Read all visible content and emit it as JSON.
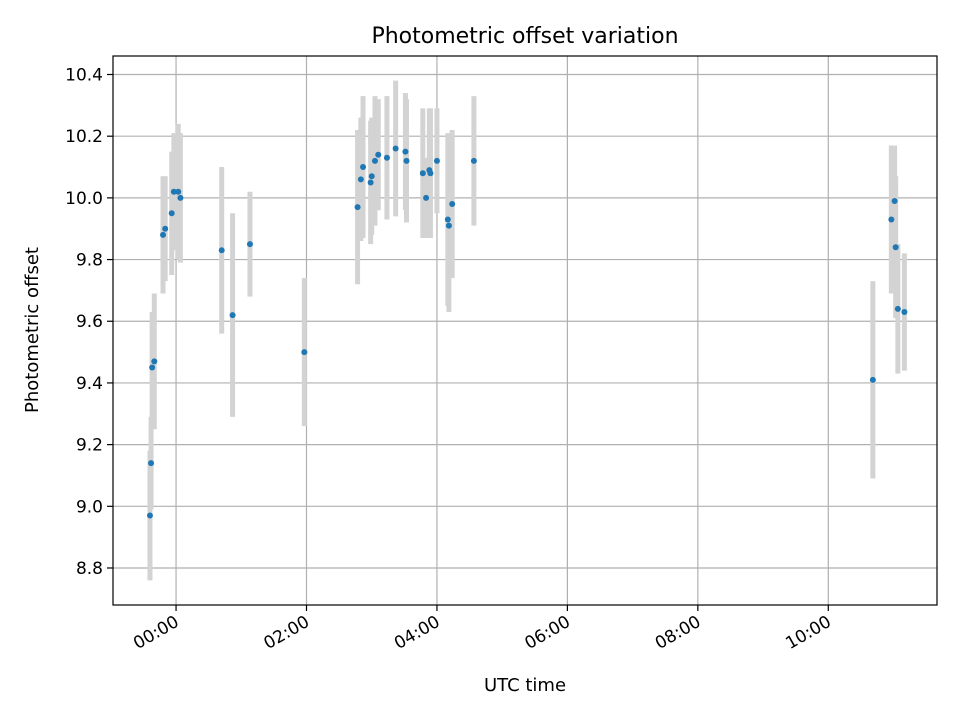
{
  "chart_data": {
    "type": "scatter",
    "title": "Photometric offset variation",
    "xlabel": "UTC time",
    "ylabel": "Photometric offset",
    "x_ticks": [
      "00:00",
      "02:00",
      "04:00",
      "06:00",
      "08:00",
      "10:00"
    ],
    "y_ticks": [
      "8.8",
      "9.0",
      "9.2",
      "9.4",
      "9.6",
      "9.8",
      "10.0",
      "10.2",
      "10.4"
    ],
    "xlim": [
      "-00:58",
      "11:40"
    ],
    "ylim": [
      8.68,
      10.46
    ],
    "grid": true,
    "point_color": "#1f77b4",
    "errorbar_color": "#d3d3d3",
    "series": [
      {
        "points": [
          {
            "x": "-00:24",
            "y": 8.97,
            "err": 0.21
          },
          {
            "x": "-00:23",
            "y": 9.14,
            "err": 0.15
          },
          {
            "x": "-00:22",
            "y": 9.45,
            "err": 0.18
          },
          {
            "x": "-00:20",
            "y": 9.47,
            "err": 0.22
          },
          {
            "x": "-00:12",
            "y": 9.88,
            "err": 0.19
          },
          {
            "x": "-00:10",
            "y": 9.9,
            "err": 0.17
          },
          {
            "x": "-00:04",
            "y": 9.95,
            "err": 0.2
          },
          {
            "x": "-00:02",
            "y": 10.02,
            "err": 0.19
          },
          {
            "x": "00:02",
            "y": 10.02,
            "err": 0.22
          },
          {
            "x": "00:04",
            "y": 10.0,
            "err": 0.21
          },
          {
            "x": "00:42",
            "y": 9.83,
            "err": 0.27
          },
          {
            "x": "00:52",
            "y": 9.62,
            "err": 0.33
          },
          {
            "x": "01:08",
            "y": 9.85,
            "err": 0.17
          },
          {
            "x": "01:58",
            "y": 9.5,
            "err": 0.24
          },
          {
            "x": "02:47",
            "y": 9.97,
            "err": 0.25
          },
          {
            "x": "02:50",
            "y": 10.06,
            "err": 0.2
          },
          {
            "x": "02:52",
            "y": 10.1,
            "err": 0.23
          },
          {
            "x": "02:59",
            "y": 10.05,
            "err": 0.2
          },
          {
            "x": "03:00",
            "y": 10.07,
            "err": 0.19
          },
          {
            "x": "03:03",
            "y": 10.12,
            "err": 0.21
          },
          {
            "x": "03:06",
            "y": 10.14,
            "err": 0.18
          },
          {
            "x": "03:14",
            "y": 10.13,
            "err": 0.2
          },
          {
            "x": "03:22",
            "y": 10.16,
            "err": 0.22
          },
          {
            "x": "03:31",
            "y": 10.15,
            "err": 0.19
          },
          {
            "x": "03:32",
            "y": 10.12,
            "err": 0.2
          },
          {
            "x": "03:47",
            "y": 10.08,
            "err": 0.21
          },
          {
            "x": "03:50",
            "y": 10.0,
            "err": 0.13
          },
          {
            "x": "03:53",
            "y": 10.09,
            "err": 0.2
          },
          {
            "x": "03:54",
            "y": 10.08,
            "err": 0.21
          },
          {
            "x": "04:00",
            "y": 10.12,
            "err": 0.17
          },
          {
            "x": "04:10",
            "y": 9.93,
            "err": 0.28
          },
          {
            "x": "04:11",
            "y": 9.91,
            "err": 0.28
          },
          {
            "x": "04:14",
            "y": 9.98,
            "err": 0.24
          },
          {
            "x": "04:34",
            "y": 10.12,
            "err": 0.21
          },
          {
            "x": "10:41",
            "y": 9.41,
            "err": 0.32
          },
          {
            "x": "10:58",
            "y": 9.93,
            "err": 0.24
          },
          {
            "x": "11:01",
            "y": 9.99,
            "err": 0.18
          },
          {
            "x": "11:02",
            "y": 9.84,
            "err": 0.23
          },
          {
            "x": "11:04",
            "y": 9.64,
            "err": 0.21
          },
          {
            "x": "11:10",
            "y": 9.63,
            "err": 0.19
          }
        ]
      }
    ]
  }
}
